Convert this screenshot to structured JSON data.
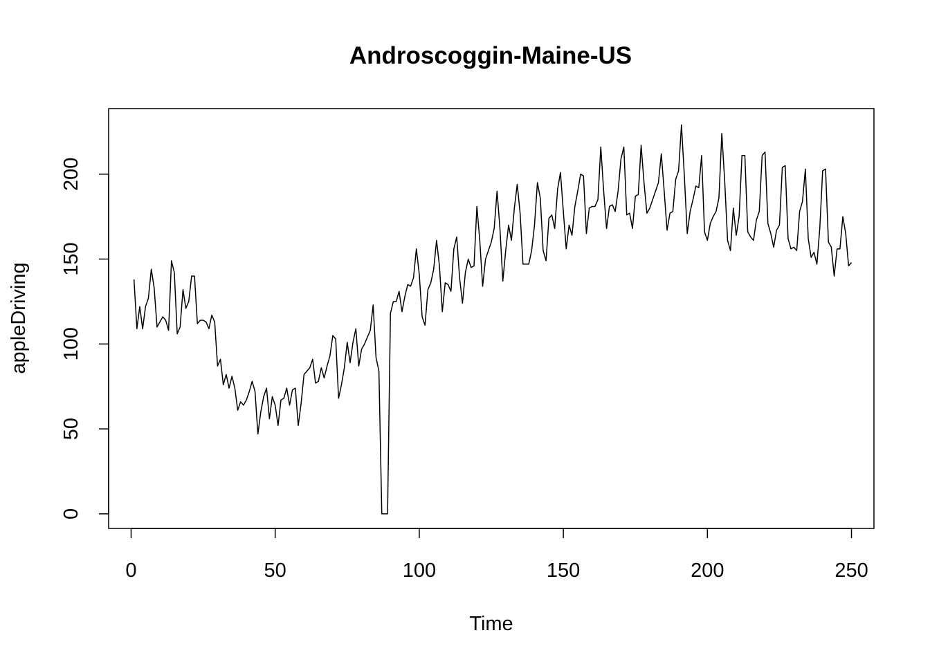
{
  "chart_data": {
    "type": "line",
    "title": "Androscoggin-Maine-US",
    "xlabel": "Time",
    "ylabel": "appleDriving",
    "xlim": [
      -7.8,
      257.8
    ],
    "ylim": [
      -8.6,
      238.6
    ],
    "xticks": [
      0,
      50,
      100,
      150,
      200,
      250
    ],
    "yticks": [
      0,
      50,
      100,
      150,
      200
    ],
    "grid": false,
    "legend": "none",
    "line_color": "#000000",
    "series": [
      {
        "values": [
          138,
          109,
          122,
          109,
          122,
          127,
          144,
          133,
          110,
          113,
          116,
          114,
          108,
          149,
          142,
          106,
          110,
          132,
          121,
          125,
          140,
          140,
          112,
          114,
          114,
          113,
          109,
          117,
          113,
          87,
          91,
          76,
          82,
          74,
          81,
          74,
          61,
          66,
          64,
          67,
          72,
          78,
          72,
          47,
          60,
          69,
          74,
          56,
          69,
          64,
          52,
          67,
          68,
          74,
          64,
          73,
          74,
          52,
          65,
          82,
          84,
          86,
          91,
          77,
          78,
          86,
          80,
          87,
          93,
          105,
          103,
          68,
          76,
          86,
          101,
          89,
          101,
          109,
          87,
          97,
          100,
          104,
          108,
          123,
          92,
          84,
          0,
          0,
          0,
          118,
          125,
          125,
          131,
          119,
          128,
          135,
          134,
          139,
          156,
          141,
          116,
          111,
          132,
          136,
          144,
          161,
          146,
          119,
          136,
          135,
          131,
          156,
          163,
          139,
          124,
          142,
          150,
          145,
          146,
          181,
          161,
          134,
          150,
          155,
          160,
          168,
          190,
          168,
          137,
          155,
          170,
          161,
          180,
          194,
          177,
          147,
          147,
          147,
          155,
          170,
          195,
          186,
          155,
          149,
          174,
          176,
          168,
          191,
          201,
          178,
          156,
          170,
          164,
          181,
          190,
          200,
          199,
          165,
          180,
          181,
          181,
          185,
          216,
          190,
          168,
          181,
          182,
          178,
          190,
          209,
          216,
          176,
          177,
          168,
          187,
          188,
          217,
          195,
          177,
          180,
          185,
          190,
          195,
          212,
          190,
          167,
          177,
          178,
          197,
          202,
          229,
          199,
          165,
          178,
          185,
          193,
          192,
          211,
          166,
          161,
          171,
          175,
          178,
          186,
          224,
          196,
          161,
          155,
          180,
          164,
          175,
          211,
          211,
          166,
          163,
          161,
          173,
          178,
          211,
          213,
          171,
          165,
          157,
          167,
          170,
          204,
          205,
          162,
          156,
          157,
          155,
          178,
          184,
          203,
          162,
          151,
          154,
          147,
          168,
          202,
          203,
          160,
          157,
          140,
          156,
          156,
          175,
          165,
          146,
          148
        ]
      }
    ]
  }
}
